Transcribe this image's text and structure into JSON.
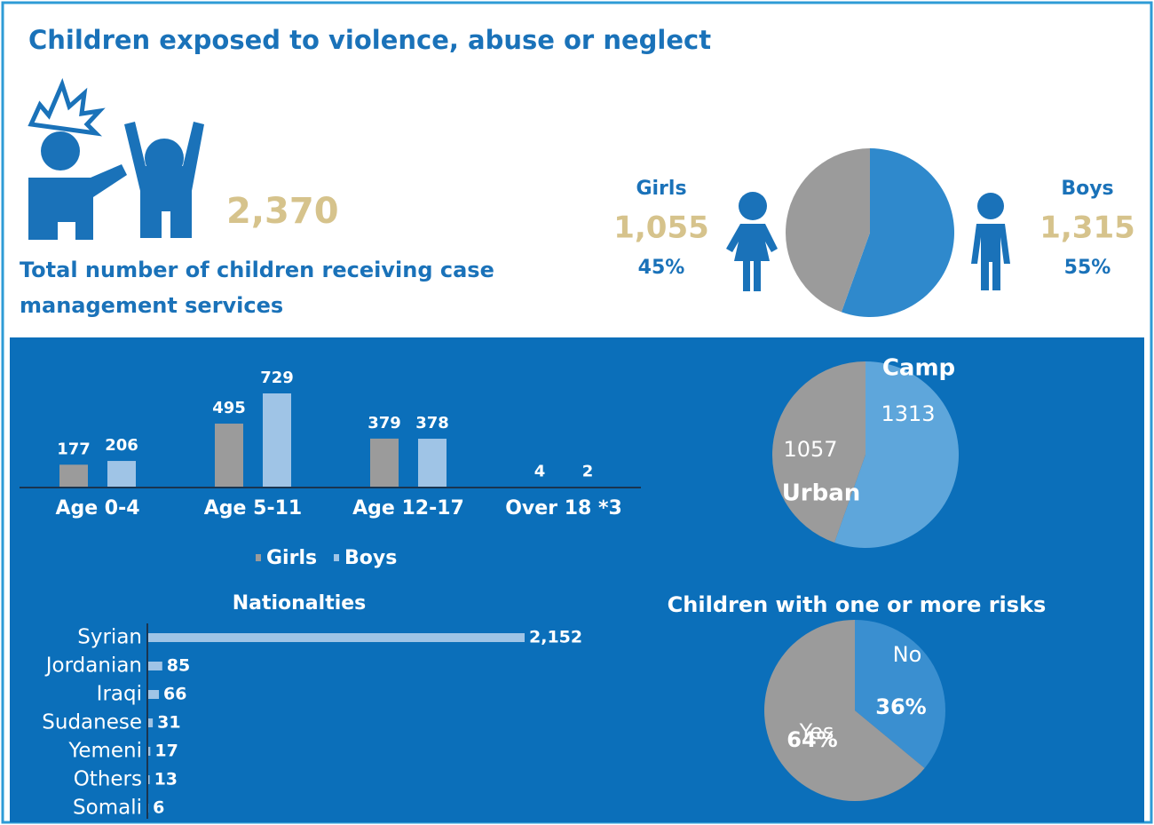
{
  "title": "Children exposed to violence, abuse or neglect",
  "total": {
    "value_label": "2,370",
    "label": "Total number of children receiving case management services"
  },
  "chart_data": [
    {
      "type": "pie",
      "categories": [
        "Girls",
        "Boys"
      ],
      "values": [
        1055,
        1315
      ],
      "value_labels": [
        "1,055",
        "1,315"
      ],
      "percent_labels": [
        "45%",
        "55%"
      ],
      "colors": [
        "#9b9b9b",
        "#2f89cc"
      ]
    },
    {
      "type": "bar",
      "categories": [
        "Age 0-4",
        "Age 5-11",
        "Age 12-17",
        "Over 18 *3"
      ],
      "series": [
        {
          "name": "Girls",
          "color": "#9b9b9b",
          "values": [
            177,
            495,
            379,
            4
          ]
        },
        {
          "name": "Boys",
          "color": "#9fc4e6",
          "values": [
            206,
            729,
            378,
            2
          ]
        }
      ],
      "legend": "bottom"
    },
    {
      "type": "pie",
      "categories": [
        "Camp",
        "Urban"
      ],
      "values": [
        1313,
        1057
      ],
      "colors": [
        "#5ea6db",
        "#9b9b9b"
      ]
    },
    {
      "type": "bar",
      "orientation": "horizontal",
      "title": "Nationalties",
      "categories": [
        "Syrian",
        "Jordanian",
        "Iraqi",
        "Sudanese",
        "Yemeni",
        "Others",
        "Somali"
      ],
      "values": [
        2152,
        85,
        66,
        31,
        17,
        13,
        6
      ],
      "value_labels": [
        "2,152",
        "85",
        "66",
        "31",
        "17",
        "13",
        "6"
      ],
      "color": "#9fc4e6"
    },
    {
      "type": "pie",
      "title": "Children with one or more risks",
      "categories": [
        "No",
        "Yes"
      ],
      "values": [
        36,
        64
      ],
      "value_labels": [
        "36%",
        "64%"
      ],
      "colors": [
        "#3a8fd0",
        "#9b9b9b"
      ]
    }
  ]
}
